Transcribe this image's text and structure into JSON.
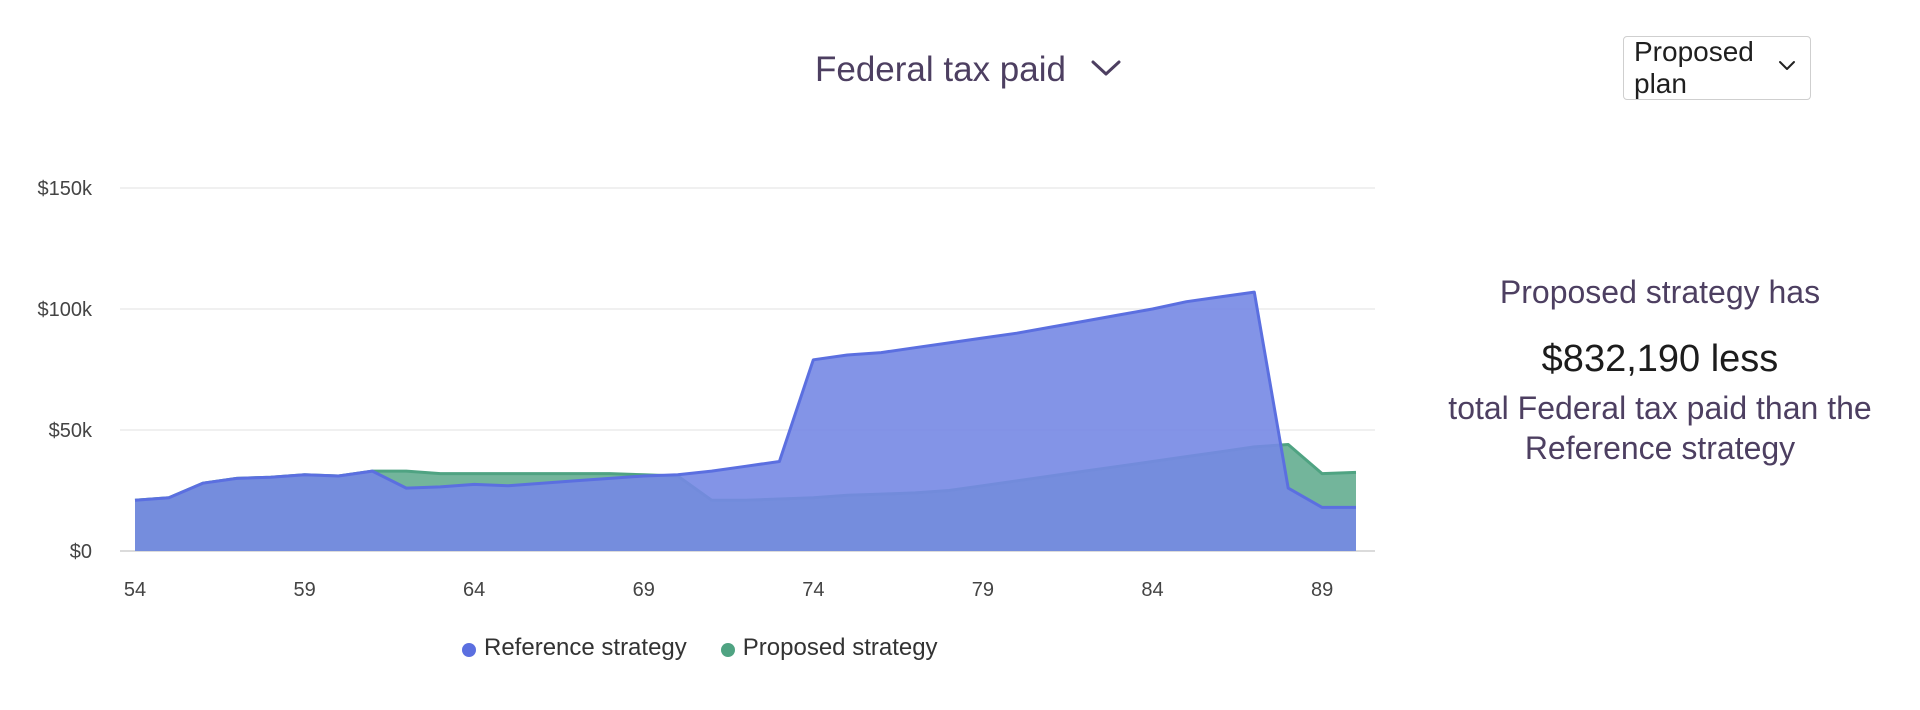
{
  "header": {
    "metric_label": "Federal tax paid",
    "plan_dropdown_label": "Proposed plan"
  },
  "summary": {
    "intro": "Proposed strategy has",
    "amount": "$832,190 less",
    "rest": "total Federal tax paid than the Reference strategy"
  },
  "legend": [
    {
      "label": "Reference strategy",
      "color": "#5b6fe0"
    },
    {
      "label": "Proposed strategy",
      "color": "#4fa382"
    }
  ],
  "chart_data": {
    "type": "area",
    "x": [
      54,
      55,
      56,
      57,
      58,
      59,
      60,
      61,
      62,
      63,
      64,
      65,
      66,
      67,
      68,
      69,
      70,
      71,
      72,
      73,
      74,
      75,
      76,
      77,
      78,
      79,
      80,
      81,
      82,
      83,
      84,
      85,
      86,
      87,
      88,
      89,
      90
    ],
    "xticks": [
      54,
      59,
      64,
      69,
      74,
      79,
      84,
      89
    ],
    "xlim": [
      54,
      90
    ],
    "ylim": [
      0,
      150000
    ],
    "yticks": [
      0,
      50000,
      100000,
      150000
    ],
    "ytick_labels": [
      "$0",
      "$50k",
      "$100k",
      "$150k"
    ],
    "grid": true,
    "legend_position": "bottom",
    "series": [
      {
        "name": "Reference strategy",
        "color": "#5b6fe0",
        "fill": "#7588e4",
        "values": [
          21000,
          22000,
          28000,
          30000,
          30500,
          31500,
          31000,
          33000,
          26000,
          26500,
          27500,
          27000,
          28000,
          29000,
          30000,
          31000,
          31500,
          33000,
          35000,
          37000,
          79000,
          81000,
          82000,
          84000,
          86000,
          88000,
          90000,
          92500,
          95000,
          97500,
          100000,
          103000,
          105000,
          107000,
          26000,
          18000,
          18000
        ]
      },
      {
        "name": "Proposed strategy",
        "color": "#4fa382",
        "fill": "#6cb196",
        "values": [
          21000,
          22000,
          28000,
          30000,
          30500,
          31500,
          31000,
          33000,
          33000,
          32000,
          32000,
          32000,
          32000,
          32000,
          32000,
          31500,
          31000,
          21000,
          21000,
          21500,
          22000,
          23000,
          23500,
          24000,
          25000,
          27000,
          29000,
          31000,
          33000,
          35000,
          37000,
          39000,
          41000,
          43000,
          44000,
          32000,
          32500
        ]
      }
    ]
  }
}
